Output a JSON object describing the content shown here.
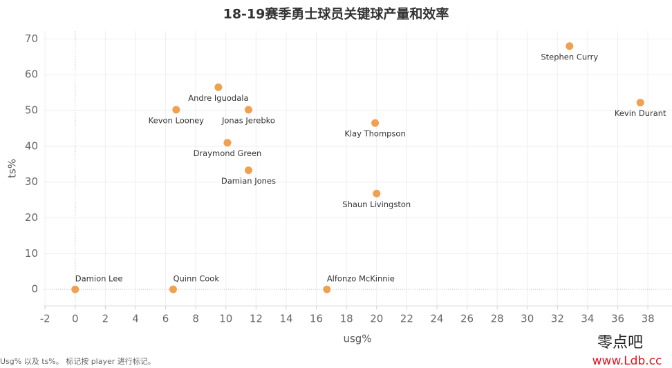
{
  "chart_data": {
    "type": "scatter",
    "title": "18-19赛季勇士球员关键球产量和效率",
    "x_label": "usg%",
    "y_label": "ts%",
    "point_labels": [
      "Stephen Curry",
      "Kevin Durant",
      "Andre Iguodala",
      "Kevon Looney",
      "Jonas Jerebko",
      "Klay Thompson",
      "Draymond Green",
      "Damian Jones",
      "Shaun Livingston",
      "Damion Lee",
      "Quinn Cook",
      "Alfonzo McKinnie"
    ],
    "x": [
      32.8,
      37.5,
      9.5,
      6.7,
      11.5,
      19.9,
      10.1,
      11.5,
      20.0,
      0,
      6.5,
      16.7
    ],
    "values": [
      68,
      52.2,
      56.5,
      50.2,
      50.2,
      46.5,
      41,
      33.3,
      26.8,
      0,
      0,
      0
    ],
    "color": "#f0a04e",
    "xlim": [
      -2.1,
      39.6
    ],
    "ylim": [
      -4.6,
      72.2
    ],
    "xticks": [
      -2,
      0,
      2,
      4,
      6,
      8,
      10,
      12,
      14,
      16,
      18,
      20,
      22,
      24,
      26,
      28,
      30,
      32,
      34,
      36,
      38
    ],
    "yticks": [
      0,
      10,
      20,
      30,
      40,
      50,
      60,
      70
    ],
    "grid": true,
    "footnote": "Usg% 以及 ts%。 标记按 player 进行标记。",
    "watermark": [
      "零点吧",
      "www.Ldb.cc"
    ]
  }
}
